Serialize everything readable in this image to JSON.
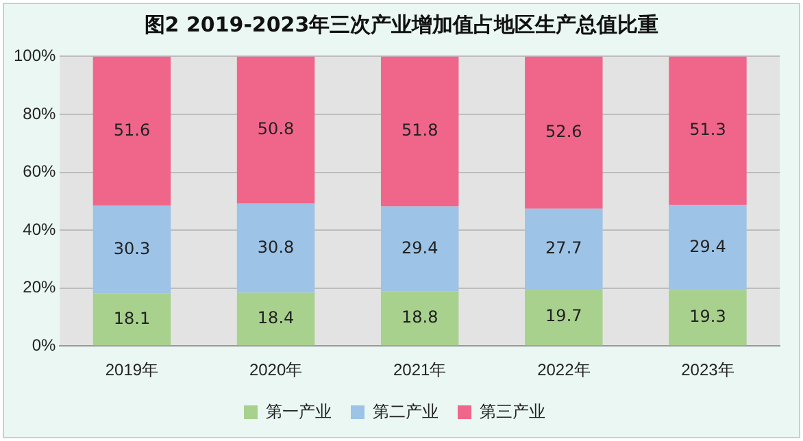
{
  "chart_data": {
    "type": "bar",
    "title": "图2  2019-2023年三次产业增加值占地区生产总值比重",
    "categories": [
      "2019年",
      "2020年",
      "2021年",
      "2022年",
      "2023年"
    ],
    "series": [
      {
        "name": "第一产业",
        "color": "#a9d18e",
        "values": [
          18.1,
          18.4,
          18.8,
          19.7,
          19.3
        ]
      },
      {
        "name": "第二产业",
        "color": "#9dc3e6",
        "values": [
          30.3,
          30.8,
          29.4,
          27.7,
          29.4
        ]
      },
      {
        "name": "第三产业",
        "color": "#f0668a",
        "values": [
          51.6,
          50.8,
          51.8,
          52.6,
          51.3
        ]
      }
    ],
    "stacked": true,
    "ylim": [
      0,
      100
    ],
    "yticks": [
      {
        "value": 0,
        "label": "0%"
      },
      {
        "value": 20,
        "label": "20%"
      },
      {
        "value": 40,
        "label": "40%"
      },
      {
        "value": 60,
        "label": "60%"
      },
      {
        "value": 80,
        "label": "80%"
      },
      {
        "value": 100,
        "label": "100%"
      }
    ],
    "grid": "y",
    "legend": "bottom",
    "data_labels": true
  }
}
